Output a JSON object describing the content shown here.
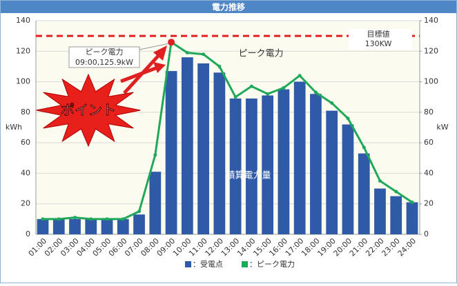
{
  "chart_data": {
    "type": "bar",
    "title": "電力推移",
    "categories": [
      "01:00",
      "02:00",
      "03:00",
      "04:00",
      "05:00",
      "06:00",
      "07:00",
      "08:00",
      "09:00",
      "10:00",
      "11:00",
      "12:00",
      "13:00",
      "14:00",
      "15:00",
      "16:00",
      "17:00",
      "18:00",
      "19:00",
      "20:00",
      "21:00",
      "22:00",
      "23:00",
      "24:00"
    ],
    "series": [
      {
        "name": "受電点",
        "type": "bar",
        "color": "#2e5aa8",
        "values": [
          10,
          10,
          10,
          10,
          10,
          10,
          13,
          41,
          107,
          116,
          112,
          106,
          89,
          89,
          91,
          95,
          100,
          92,
          81,
          72,
          53,
          30,
          25,
          21
        ]
      },
      {
        "name": "ピーク電力",
        "type": "line",
        "axis": "y2",
        "color": "#1fa85a",
        "values": [
          10,
          10,
          11,
          10,
          10,
          10,
          15,
          52,
          125.9,
          119,
          118,
          110,
          90,
          97,
          92,
          96,
          104,
          93,
          86,
          76,
          57,
          35,
          28,
          21
        ]
      }
    ],
    "legend_separator": "：",
    "ylabel": "kWh",
    "y2label": "kW",
    "ylim": [
      0,
      140
    ],
    "yticks": [
      0,
      20,
      40,
      60,
      80,
      100,
      120,
      140
    ],
    "y2lim": [
      0,
      140
    ],
    "y2ticks": [
      0,
      20,
      40,
      60,
      80,
      100,
      120,
      140
    ],
    "grid": true,
    "target": {
      "value": 130,
      "label": "130KW",
      "title": "目標値",
      "color": "#e02020"
    },
    "peak_annotation": [
      "ピーク電力",
      "09:00,125.9kW"
    ],
    "line_label": "ピーク電力",
    "bar_label": "積算電力量",
    "callout": "ポイント"
  }
}
